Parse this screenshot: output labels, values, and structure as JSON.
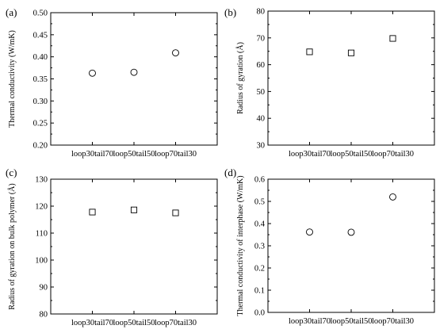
{
  "chart_data": [
    {
      "panel_label": "(a)",
      "type": "scatter",
      "marker": "circle",
      "ylabel": "Thermal conductivity (W/mK)",
      "xlabel": "",
      "categories": [
        "loop30tail70",
        "loop50tail50",
        "loop70tail30"
      ],
      "values": [
        0.363,
        0.365,
        0.409
      ],
      "ylim": [
        0.2,
        0.5
      ],
      "yticks": [
        "0.20",
        "0.25",
        "0.30",
        "0.35",
        "0.40",
        "0.45",
        "0.50"
      ],
      "grid": false
    },
    {
      "panel_label": "(b)",
      "type": "scatter",
      "marker": "square",
      "ylabel": "Radius of gyration (Å)",
      "xlabel": "",
      "categories": [
        "loop30tail70",
        "loop50tail50",
        "loop70tail30"
      ],
      "values": [
        64.8,
        64.4,
        69.8
      ],
      "ylim": [
        30,
        80
      ],
      "yticks": [
        "30",
        "40",
        "50",
        "60",
        "70",
        "80"
      ],
      "grid": false
    },
    {
      "panel_label": "(c)",
      "type": "scatter",
      "marker": "square",
      "ylabel": "Radius of gyration on bulk polymer (Å)",
      "xlabel": "",
      "categories": [
        "loop30tail70",
        "loop50tail50",
        "loop70tail30"
      ],
      "values": [
        117.8,
        118.6,
        117.5
      ],
      "ylim": [
        80,
        130
      ],
      "yticks": [
        "80",
        "90",
        "100",
        "110",
        "120",
        "130"
      ],
      "grid": false
    },
    {
      "panel_label": "(d)",
      "type": "scatter",
      "marker": "circle",
      "ylabel": "Thermal conductivity of interphase (W/mK)",
      "xlabel": "",
      "categories": [
        "loop30tail70",
        "loop50tail50",
        "loop70tail30"
      ],
      "values": [
        0.362,
        0.361,
        0.52
      ],
      "ylim": [
        0.0,
        0.6
      ],
      "yticks": [
        "0.0",
        "0.1",
        "0.2",
        "0.3",
        "0.4",
        "0.5",
        "0.6"
      ],
      "grid": false
    }
  ]
}
